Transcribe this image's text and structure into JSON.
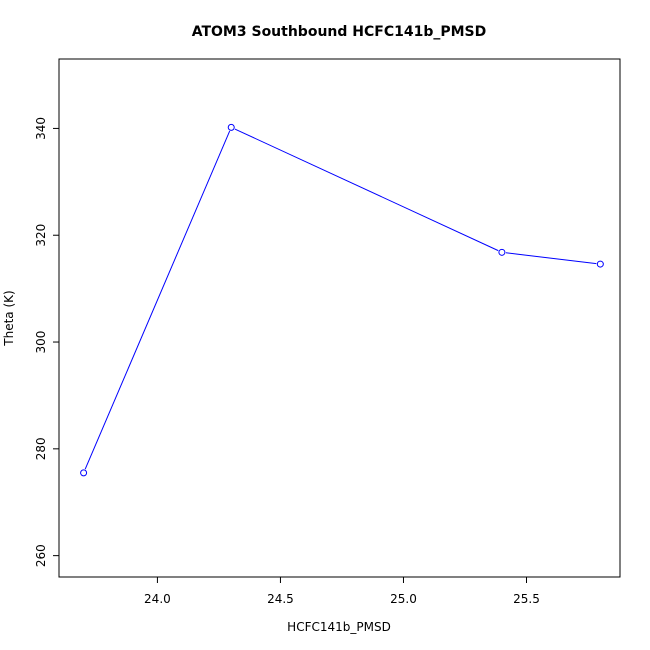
{
  "chart_data": {
    "type": "line",
    "title": "ATOM3 Southbound HCFC141b_PMSD",
    "xlabel": "HCFC141b_PMSD",
    "ylabel": "Theta (K)",
    "xlim": [
      23.6,
      25.88
    ],
    "ylim": [
      256,
      353
    ],
    "x_ticks": [
      "24.0",
      "24.5",
      "25.0",
      "25.5"
    ],
    "y_ticks": [
      "260",
      "280",
      "300",
      "320",
      "340"
    ],
    "grid": false,
    "legend": "none",
    "line_color": "#0000ff",
    "series": [
      {
        "x": [
          23.7,
          24.3,
          25.4,
          25.8
        ],
        "y": [
          275.5,
          340.2,
          316.8,
          314.6
        ]
      }
    ]
  }
}
